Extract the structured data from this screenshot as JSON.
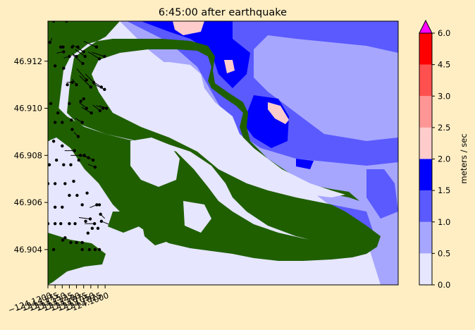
{
  "chart_data": {
    "type": "heatmap",
    "title": "6:45:00 after earthquake",
    "xlabel": "",
    "ylabel": "",
    "xlim": [
      -124.12,
      -123.9975
    ],
    "ylim": [
      46.9025,
      46.9137
    ],
    "xticks": [
      {
        "value": -124.12,
        "label": "−124.1200"
      },
      {
        "value": -124.1175,
        "label": "−124.1175"
      },
      {
        "value": -124.115,
        "label": "−124.1150"
      },
      {
        "value": -124.1125,
        "label": "−124.1125"
      },
      {
        "value": -124.11,
        "label": "−124.1100"
      },
      {
        "value": -124.1075,
        "label": "−124.1075"
      },
      {
        "value": -124.105,
        "label": "−124.1050"
      },
      {
        "value": -124.1025,
        "label": "−124.1025"
      },
      {
        "value": -124.1,
        "label": "−124.1000"
      }
    ],
    "yticks": [
      {
        "value": 46.904,
        "label": "46.904"
      },
      {
        "value": 46.906,
        "label": "46.906"
      },
      {
        "value": 46.908,
        "label": "46.908"
      },
      {
        "value": 46.91,
        "label": "46.910"
      },
      {
        "value": 46.912,
        "label": "46.912"
      }
    ],
    "colorbar": {
      "label": "meters / sec",
      "levels": [
        0.0,
        0.5,
        1.0,
        1.5,
        2.0,
        2.5,
        3.0,
        4.5,
        6.0
      ],
      "tick_labels": [
        "0.0",
        "0.5",
        "1.0",
        "1.5",
        "2.0",
        "2.5",
        "3.0",
        "4.5",
        "6.0"
      ],
      "colors": [
        "#e6e6ff",
        "#a6a6ff",
        "#5a5aff",
        "#0000ff",
        "#ffcccc",
        "#ff9696",
        "#ff5050",
        "#ff0000"
      ],
      "extend_color": "#ff00ff"
    },
    "land_color": "#1f5f00",
    "arrows": [
      {
        "x": -124.1193,
        "y": 46.9128,
        "dx": 3,
        "dy": -6
      },
      {
        "x": -124.1145,
        "y": 46.9124,
        "dx": -10,
        "dy": 2
      },
      {
        "x": -124.1125,
        "y": 46.9122,
        "dx": -8,
        "dy": 2
      },
      {
        "x": -124.11,
        "y": 46.9122,
        "dx": -6,
        "dy": -4
      },
      {
        "x": -124.1078,
        "y": 46.9119,
        "dx": -14,
        "dy": -12
      },
      {
        "x": -124.1075,
        "y": 46.9124,
        "dx": -16,
        "dy": -10
      },
      {
        "x": -124.107,
        "y": 46.9122,
        "dx": -14,
        "dy": -10
      },
      {
        "x": -124.103,
        "y": 46.9126,
        "dx": -18,
        "dy": -8
      },
      {
        "x": -124.102,
        "y": 46.9121,
        "dx": -16,
        "dy": -10
      },
      {
        "x": -124.1002,
        "y": 46.9122,
        "dx": -18,
        "dy": -6
      },
      {
        "x": -124.1065,
        "y": 46.9112,
        "dx": -14,
        "dy": -16
      },
      {
        "x": -124.105,
        "y": 46.9109,
        "dx": -16,
        "dy": -16
      },
      {
        "x": -124.104,
        "y": 46.9111,
        "dx": -12,
        "dy": -12
      },
      {
        "x": -124.1013,
        "y": 46.9109,
        "dx": -12,
        "dy": -8
      },
      {
        "x": -124.1002,
        "y": 46.9108,
        "dx": -16,
        "dy": -8
      },
      {
        "x": -124.11,
        "y": 46.911,
        "dx": -6,
        "dy": -8
      },
      {
        "x": -124.1115,
        "y": 46.9111,
        "dx": -8,
        "dy": 0
      },
      {
        "x": -124.1065,
        "y": 46.91,
        "dx": -10,
        "dy": -8
      },
      {
        "x": -124.1048,
        "y": 46.9098,
        "dx": -14,
        "dy": -8
      },
      {
        "x": -124.1018,
        "y": 46.9099,
        "dx": -10,
        "dy": -8
      },
      {
        "x": -124.1007,
        "y": 46.91,
        "dx": -10,
        "dy": -4
      },
      {
        "x": -124.0995,
        "y": 46.91,
        "dx": -10,
        "dy": -4
      },
      {
        "x": -124.108,
        "y": 46.9094,
        "dx": -10,
        "dy": -6
      },
      {
        "x": -124.1094,
        "y": 46.9088,
        "dx": -6,
        "dy": -6
      },
      {
        "x": -124.1058,
        "y": 46.9079,
        "dx": -14,
        "dy": -4
      },
      {
        "x": -124.1042,
        "y": 46.9078,
        "dx": -12,
        "dy": -6
      },
      {
        "x": -124.1035,
        "y": 46.9075,
        "dx": -10,
        "dy": -4
      },
      {
        "x": -124.1086,
        "y": 46.908,
        "dx": -14,
        "dy": 0
      },
      {
        "x": -124.1107,
        "y": 46.9082,
        "dx": -14,
        "dy": 0
      },
      {
        "x": -124.1052,
        "y": 46.9053,
        "dx": -16,
        "dy": -2
      },
      {
        "x": -124.1029,
        "y": 46.9059,
        "dx": -10,
        "dy": 4
      },
      {
        "x": -124.1016,
        "y": 46.9055,
        "dx": 6,
        "dy": 6
      },
      {
        "x": -124.1013,
        "y": 46.9052,
        "dx": 10,
        "dy": 4
      },
      {
        "x": -124.1037,
        "y": 46.9051,
        "dx": -14,
        "dy": 0
      }
    ],
    "dots": [
      {
        "x": -124.118,
        "y": 46.9137
      },
      {
        "x": -124.1135,
        "y": 46.9137
      },
      {
        "x": -124.1155,
        "y": 46.9126
      },
      {
        "x": -124.1147,
        "y": 46.9126
      },
      {
        "x": -124.1115,
        "y": 46.9126
      },
      {
        "x": -124.1095,
        "y": 46.9126
      },
      {
        "x": -124.1175,
        "y": 46.9118
      },
      {
        "x": -124.1145,
        "y": 46.9117
      },
      {
        "x": -124.1132,
        "y": 46.911
      },
      {
        "x": -124.119,
        "y": 46.9102
      },
      {
        "x": -124.1165,
        "y": 46.9098
      },
      {
        "x": -124.1125,
        "y": 46.9102
      },
      {
        "x": -124.1175,
        "y": 46.9094
      },
      {
        "x": -124.115,
        "y": 46.9094
      },
      {
        "x": -124.1118,
        "y": 46.9095
      },
      {
        "x": -124.1115,
        "y": 46.9091
      },
      {
        "x": -124.1075,
        "y": 46.9104
      },
      {
        "x": -124.1085,
        "y": 46.9103
      },
      {
        "x": -124.118,
        "y": 46.9086
      },
      {
        "x": -124.115,
        "y": 46.9084
      },
      {
        "x": -124.1195,
        "y": 46.9076
      },
      {
        "x": -124.117,
        "y": 46.9078
      },
      {
        "x": -124.1145,
        "y": 46.9076
      },
      {
        "x": -124.112,
        "y": 46.9076
      },
      {
        "x": -124.1092,
        "y": 46.9078
      },
      {
        "x": -124.1073,
        "y": 46.908
      },
      {
        "x": -124.12,
        "y": 46.9068
      },
      {
        "x": -124.1175,
        "y": 46.9068
      },
      {
        "x": -124.114,
        "y": 46.9068
      },
      {
        "x": -124.111,
        "y": 46.9069
      },
      {
        "x": -124.1063,
        "y": 46.9064
      },
      {
        "x": -124.1098,
        "y": 46.9063
      },
      {
        "x": -124.1125,
        "y": 46.9063
      },
      {
        "x": -124.1175,
        "y": 46.9058
      },
      {
        "x": -124.115,
        "y": 46.9058
      },
      {
        "x": -124.108,
        "y": 46.9059
      },
      {
        "x": -124.102,
        "y": 46.9059
      },
      {
        "x": -124.12,
        "y": 46.9051
      },
      {
        "x": -124.1175,
        "y": 46.9051
      },
      {
        "x": -124.1155,
        "y": 46.9051
      },
      {
        "x": -124.1125,
        "y": 46.9051
      },
      {
        "x": -124.1105,
        "y": 46.9051
      },
      {
        "x": -124.1068,
        "y": 46.9052
      },
      {
        "x": -124.1045,
        "y": 46.9049
      },
      {
        "x": -124.106,
        "y": 46.9047
      },
      {
        "x": -124.1025,
        "y": 46.9049
      },
      {
        "x": -124.1148,
        "y": 46.9044
      },
      {
        "x": -124.114,
        "y": 46.9045
      },
      {
        "x": -124.112,
        "y": 46.9043
      },
      {
        "x": -124.11,
        "y": 46.9043
      },
      {
        "x": -124.108,
        "y": 46.9043
      },
      {
        "x": -124.118,
        "y": 46.904
      },
      {
        "x": -124.108,
        "y": 46.904
      },
      {
        "x": -124.1055,
        "y": 46.904
      },
      {
        "x": -124.102,
        "y": 46.904
      },
      {
        "x": -124.1035,
        "y": 46.904
      }
    ]
  }
}
